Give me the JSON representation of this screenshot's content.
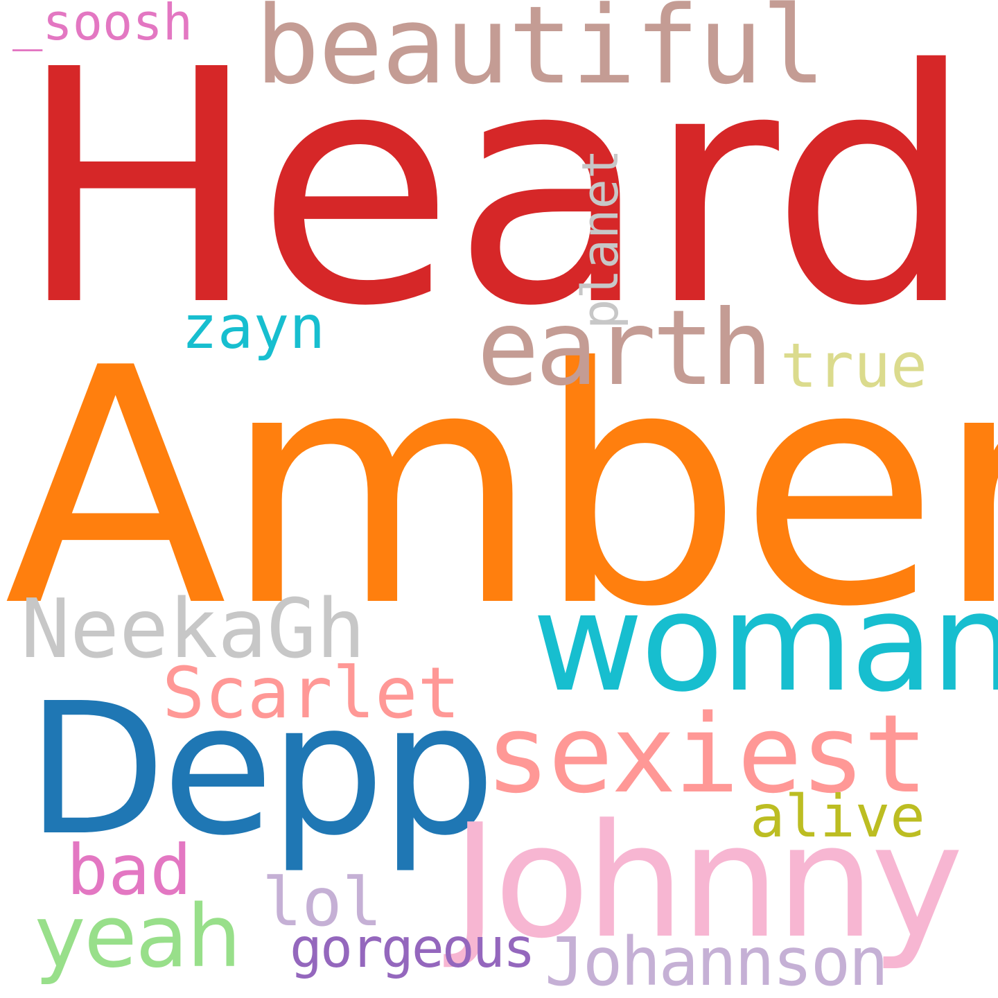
{
  "words": {
    "heard": {
      "text": "Heard",
      "color": "#d62728"
    },
    "amber": {
      "text": "Amber",
      "color": "#ff7f0e"
    },
    "beautiful": {
      "text": "beautiful",
      "color": "#c49c94"
    },
    "soosh": {
      "text": "_soosh",
      "color": "#e377c2"
    },
    "planet": {
      "text": "planet",
      "color": "#c7c7c7"
    },
    "zayn": {
      "text": "zayn",
      "color": "#17becf"
    },
    "earth": {
      "text": "earth",
      "color": "#c49c94"
    },
    "true": {
      "text": "true",
      "color": "#dbdb8d"
    },
    "neekagh": {
      "text": "NeekaGh",
      "color": "#c7c7c7"
    },
    "woman": {
      "text": "woman",
      "color": "#17becf"
    },
    "scarlet": {
      "text": "Scarlet",
      "color": "#ff9896"
    },
    "depp": {
      "text": "Depp",
      "color": "#1f77b4"
    },
    "sexiest": {
      "text": "sexiest",
      "color": "#ff9896"
    },
    "alive": {
      "text": "alive",
      "color": "#bcbd22"
    },
    "johnny": {
      "text": "Johnny",
      "color": "#f7b6d2"
    },
    "bad": {
      "text": "bad",
      "color": "#e377c2"
    },
    "lol": {
      "text": "lol",
      "color": "#c5b0d5"
    },
    "yeah": {
      "text": "yeah",
      "color": "#98df8a"
    },
    "gorgeous": {
      "text": "gorgeous",
      "color": "#9467bd"
    },
    "johannson": {
      "text": "Johannson",
      "color": "#c5b0d5"
    }
  }
}
